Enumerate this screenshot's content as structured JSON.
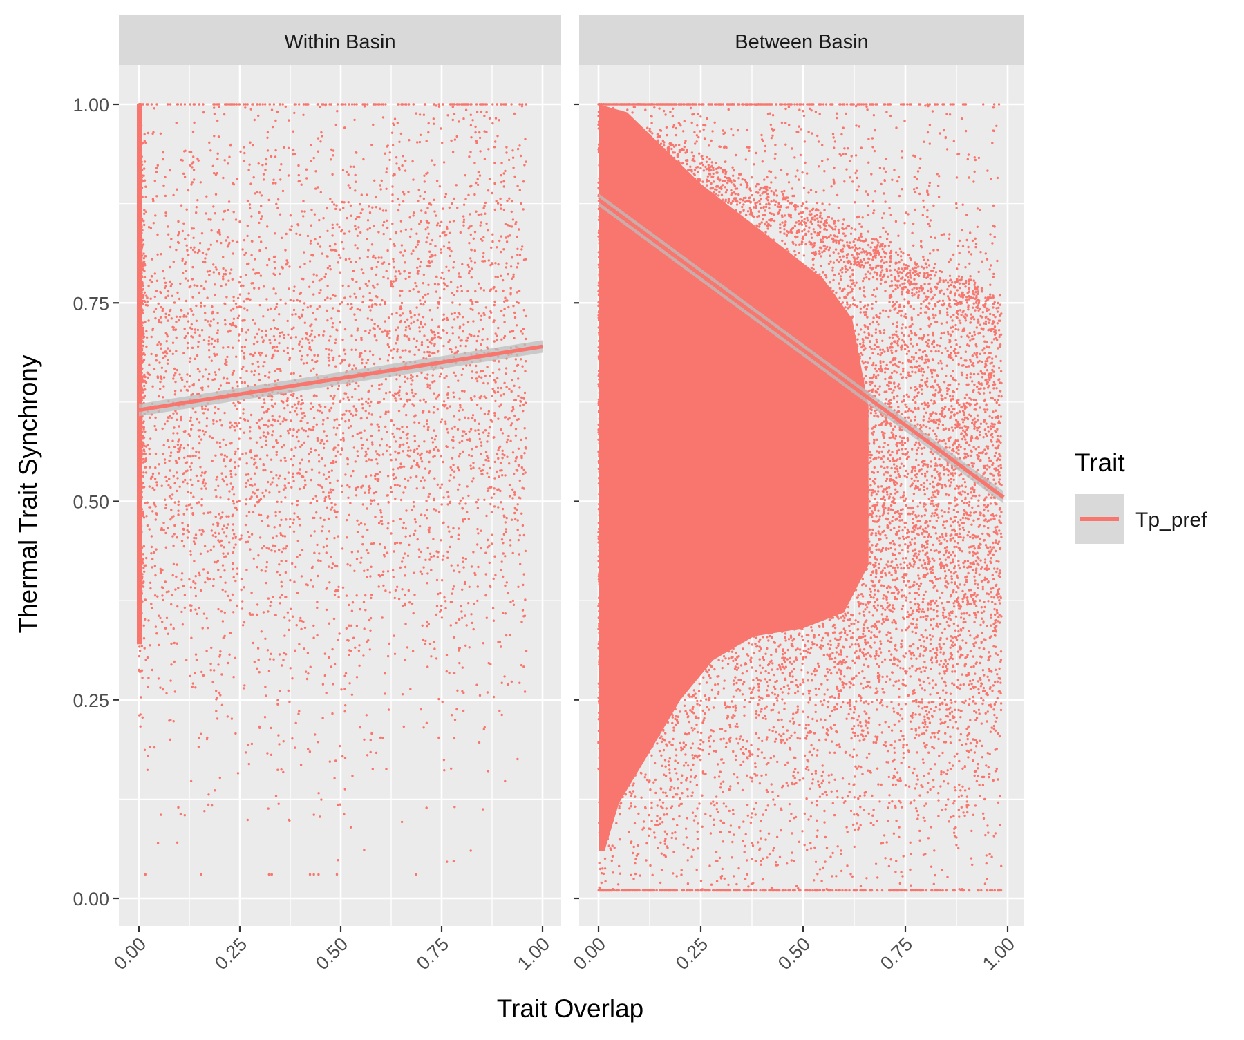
{
  "figure": {
    "xlabel": "Trait Overlap",
    "ylabel": "Thermal Trait Synchrony",
    "legend": {
      "title": "Trait",
      "entries": [
        {
          "label": "Tp_pref",
          "color": "#F8766D"
        }
      ]
    }
  },
  "colors": {
    "point": "#F8766D",
    "panel_bg": "#EBEBEB",
    "strip_bg": "#D9D9D9",
    "grid": "#FFFFFF",
    "ribbon": "#BEBEBE"
  },
  "chart_data": [
    {
      "type": "scatter",
      "title": "Within Basin",
      "xlabel": "Trait Overlap",
      "ylabel": "Thermal Trait Synchrony",
      "xlim": [
        0,
        1
      ],
      "ylim": [
        0,
        1
      ],
      "xticks": [
        "0.00",
        "0.25",
        "0.50",
        "0.75",
        "1.00"
      ],
      "yticks": [
        "0.00",
        "0.25",
        "0.50",
        "0.75",
        "1.00"
      ],
      "series": [
        {
          "name": "Tp_pref",
          "point_count_estimate": 9000,
          "x_range": [
            0,
            1
          ],
          "y_range": [
            0.03,
            1.0
          ],
          "trend_line": {
            "x": [
              0,
              1
            ],
            "y": [
              0.615,
              0.695
            ]
          }
        }
      ],
      "legend": "right"
    },
    {
      "type": "scatter",
      "title": "Between Basin",
      "xlabel": "Trait Overlap",
      "ylabel": "Thermal Trait Synchrony",
      "xlim": [
        0,
        1
      ],
      "ylim": [
        0,
        1
      ],
      "xticks": [
        "0.00",
        "0.25",
        "0.50",
        "0.75",
        "1.00"
      ],
      "yticks": [
        "0.00",
        "0.25",
        "0.50",
        "0.75",
        "1.00"
      ],
      "series": [
        {
          "name": "Tp_pref",
          "point_count_estimate": 60000,
          "x_range": [
            0,
            0.99
          ],
          "y_range": [
            0.01,
            1.0
          ],
          "trend_line": {
            "x": [
              0,
              0.99
            ],
            "y": [
              0.88,
              0.505
            ]
          }
        }
      ],
      "legend": "right"
    }
  ]
}
